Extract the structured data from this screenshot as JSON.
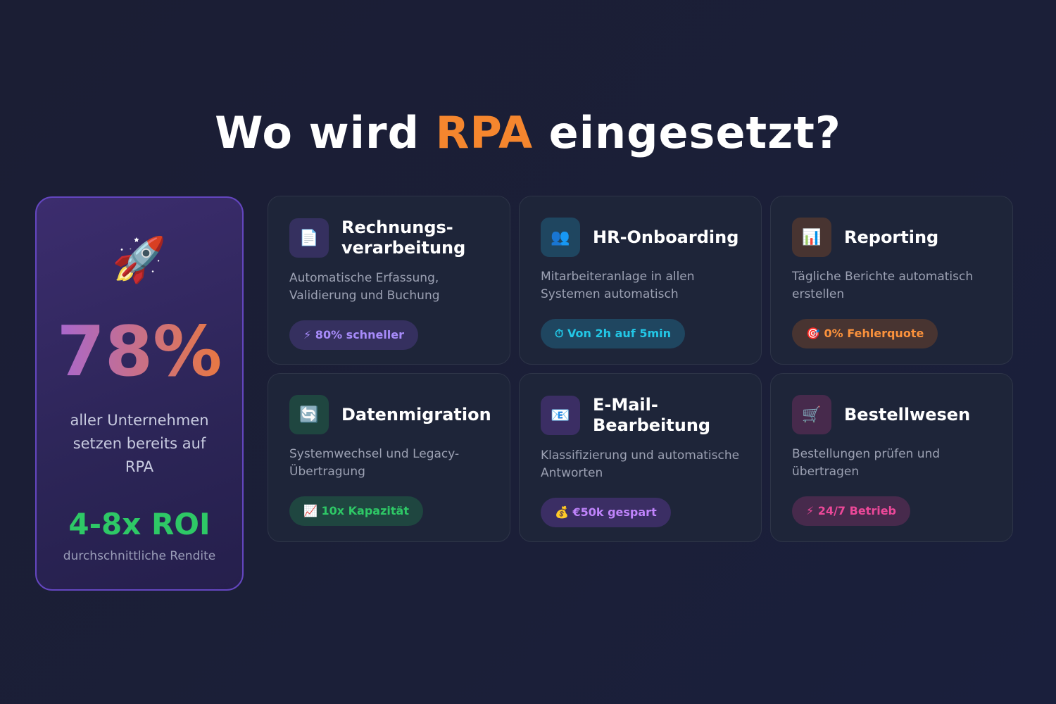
{
  "title": {
    "before": "Wo wird ",
    "highlight": "RPA",
    "after": " eingesetzt?"
  },
  "stat": {
    "icon": "🚀",
    "value": "78%",
    "text": "aller Unternehmen setzen bereits auf RPA",
    "roi": "4-8x ROI",
    "roi_note": "durchschnittliche Rendite"
  },
  "cards": [
    {
      "icon": "📄",
      "title": "Rechnungs-verarbeitung",
      "description": "Automatische Erfassung, Validierung und Buchung",
      "badge": "⚡ 80% schneller",
      "color": "#a78bfa",
      "background": "#35305f"
    },
    {
      "icon": "👥",
      "title": "HR-Onboarding",
      "description": "Mitarbeiteranlage in allen Systemen automatisch",
      "badge": "⏱ Von 2h auf 5min",
      "color": "#22c7e6",
      "background": "#1f4660"
    },
    {
      "icon": "📊",
      "title": "Reporting",
      "description": "Tägliche Berichte automatisch erstellen",
      "badge": "🎯 0% Fehlerquote",
      "color": "#fb923c",
      "background": "#483431"
    },
    {
      "icon": "🔄",
      "title": "Datenmigration",
      "description": "Systemwechsel und Legacy-Übertragung",
      "badge": "📈 10x Kapazität",
      "color": "#2ec866",
      "background": "#1f4640"
    },
    {
      "icon": "📧",
      "title": "E-Mail-Bearbeitung",
      "description": "Klassifizierung und automatische Antworten",
      "badge": "💰 €50k gespart",
      "color": "#c084fc",
      "background": "#3b2e64"
    },
    {
      "icon": "🛒",
      "title": "Bestellwesen",
      "description": "Bestellungen prüfen und übertragen",
      "badge": "⚡ 24/7 Betrieb",
      "color": "#ec4899",
      "background": "#472a4c"
    }
  ]
}
